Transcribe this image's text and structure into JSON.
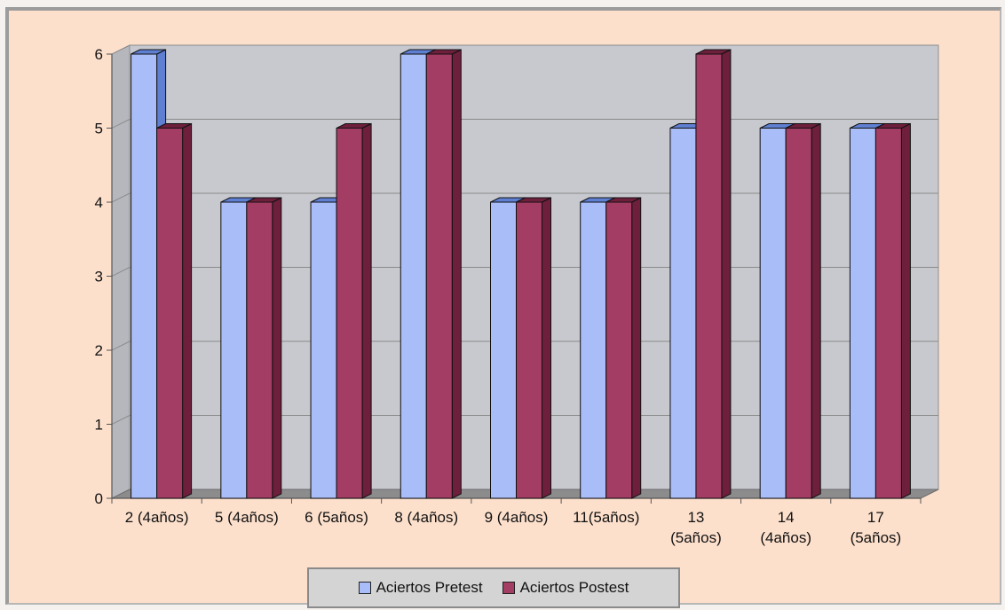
{
  "chart_data": {
    "type": "bar",
    "style": "3d-clustered-column",
    "categories": [
      "2 (4años)",
      "5 (4años)",
      "6 (5años)",
      "8 (4años)",
      "9 (4años)",
      "11(5años)",
      "13 (5años)",
      "14 (4años)",
      "17 (5años)"
    ],
    "category_label_lines": [
      [
        "2 (4años)"
      ],
      [
        "5 (4años)"
      ],
      [
        "6 (5años)"
      ],
      [
        "8 (4años)"
      ],
      [
        "9 (4años)"
      ],
      [
        "11(5años)"
      ],
      [
        "13",
        "(5años)"
      ],
      [
        "14",
        "(4años)"
      ],
      [
        "17",
        "(5años)"
      ]
    ],
    "series": [
      {
        "name": "Aciertos Pretest",
        "values": [
          6,
          4,
          4,
          6,
          4,
          4,
          5,
          5,
          5
        ],
        "color": "#a9bdf8",
        "side_color": "#5f7fd3"
      },
      {
        "name": "Aciertos Postest",
        "values": [
          5,
          4,
          5,
          6,
          4,
          4,
          6,
          5,
          5
        ],
        "color": "#a33d64",
        "side_color": "#6e1f3c"
      }
    ],
    "ylim": [
      0,
      6
    ],
    "yticks": [
      "0",
      "1",
      "2",
      "3",
      "4",
      "5",
      "6"
    ],
    "grid": true,
    "legend": "bottom",
    "colors": {
      "plot_background": "#c7c9cf",
      "chart_background": "#fde0cc",
      "floor": "#8c8c8c"
    }
  },
  "legend": {
    "entries": [
      {
        "label": "Aciertos Pretest",
        "color": "#a9bdf8"
      },
      {
        "label": "Aciertos Postest",
        "color": "#a33d64"
      }
    ]
  }
}
